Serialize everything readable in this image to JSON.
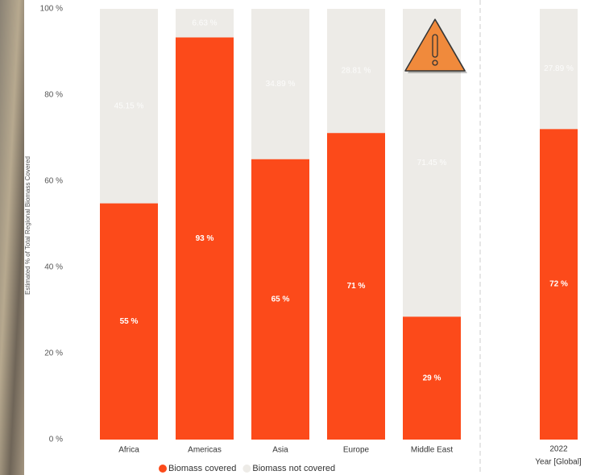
{
  "chart_data": {
    "type": "stacked_bar",
    "y_label": "Estimated % of Total Regional Biomass Covered",
    "x_label": "Year [Global]",
    "categories": [
      "Africa",
      "Americas",
      "Asia",
      "Europe",
      "Middle East",
      "2022"
    ],
    "series": [
      {
        "name": "Biomass covered",
        "color": "#fc4a1a",
        "values": [
          54.85,
          93.37,
          65.11,
          71.19,
          28.55,
          72.11
        ],
        "value_labels": [
          "55 %",
          "93 %",
          "65 %",
          "71 %",
          "29 %",
          "72 %"
        ]
      },
      {
        "name": "Biomass not covered",
        "color": "#edebe7",
        "values": [
          45.15,
          6.63,
          34.89,
          28.81,
          71.45,
          27.89
        ],
        "value_labels": [
          "45.15 %",
          "6.63 %",
          "34.89 %",
          "28.81 %",
          "71.45 %",
          "27.89 %"
        ]
      }
    ],
    "ylim": [
      0,
      100
    ],
    "yticks": [
      {
        "value": 0,
        "label": "0 %"
      },
      {
        "value": 20,
        "label": "20 %"
      },
      {
        "value": 40,
        "label": "40 %"
      },
      {
        "value": 60,
        "label": "60 %"
      },
      {
        "value": 80,
        "label": "80 %"
      },
      {
        "value": 100,
        "label": "100 %"
      }
    ]
  }
}
